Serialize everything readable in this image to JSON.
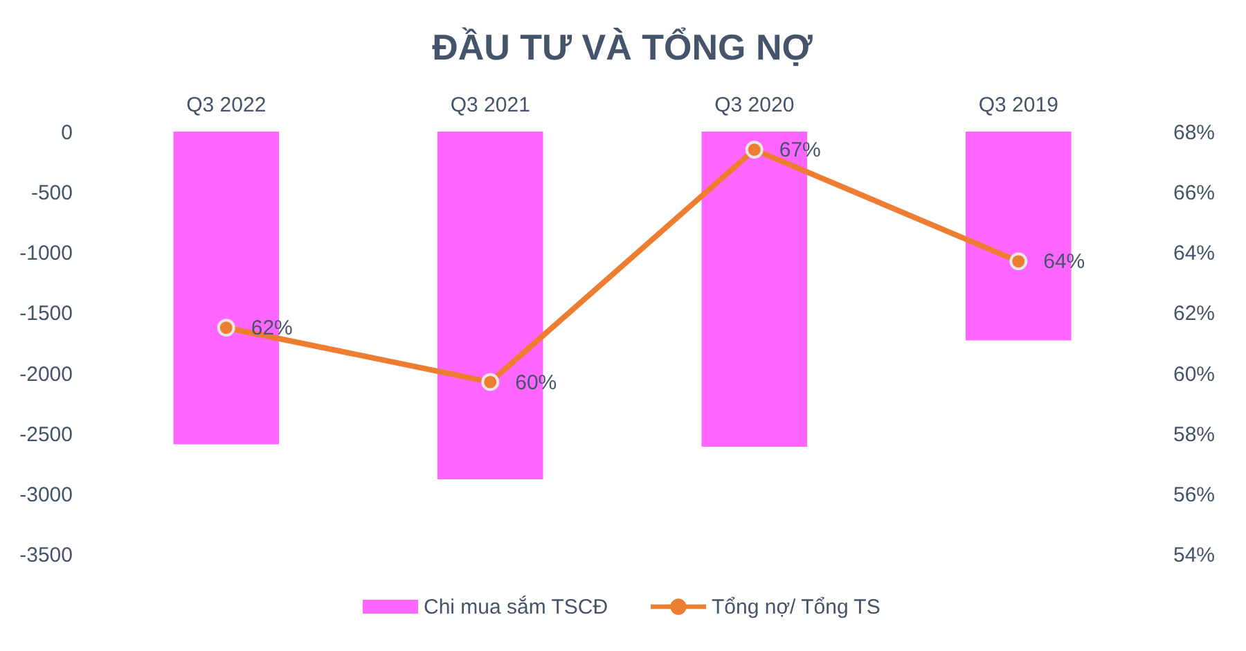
{
  "chart_data": {
    "type": "bar",
    "title": "ĐẦU TƯ VÀ TỔNG NỢ",
    "categories": [
      "Q3 2022",
      "Q3 2021",
      "Q3 2020",
      "Q3 2019"
    ],
    "series": [
      {
        "name": "Chi mua sắm TSCĐ",
        "color": "#ff66ff",
        "values": [
          -2590,
          -2880,
          -2610,
          -1730
        ]
      },
      {
        "name": "Tổng nợ/ Tổng TS",
        "type": "line",
        "axis": "y2",
        "color": "#ed7d31",
        "values": [
          61.5,
          59.7,
          67.4,
          63.7
        ],
        "value_labels": [
          "62%",
          "60%",
          "67%",
          "64%"
        ]
      }
    ],
    "ylim": [
      -3500,
      0
    ],
    "yticks": [
      0,
      -500,
      -1000,
      -1500,
      -2000,
      -2500,
      -3000,
      -3500
    ],
    "y2lim": [
      54,
      68
    ],
    "y2ticks": [
      {
        "value": 54,
        "label": "54%"
      },
      {
        "value": 56,
        "label": "56%"
      },
      {
        "value": 58,
        "label": "58%"
      },
      {
        "value": 60,
        "label": "60%"
      },
      {
        "value": 62,
        "label": "62%"
      },
      {
        "value": 64,
        "label": "64%"
      },
      {
        "value": 66,
        "label": "66%"
      },
      {
        "value": 68,
        "label": "68%"
      }
    ],
    "legend": "bottom",
    "marker": "circle"
  }
}
